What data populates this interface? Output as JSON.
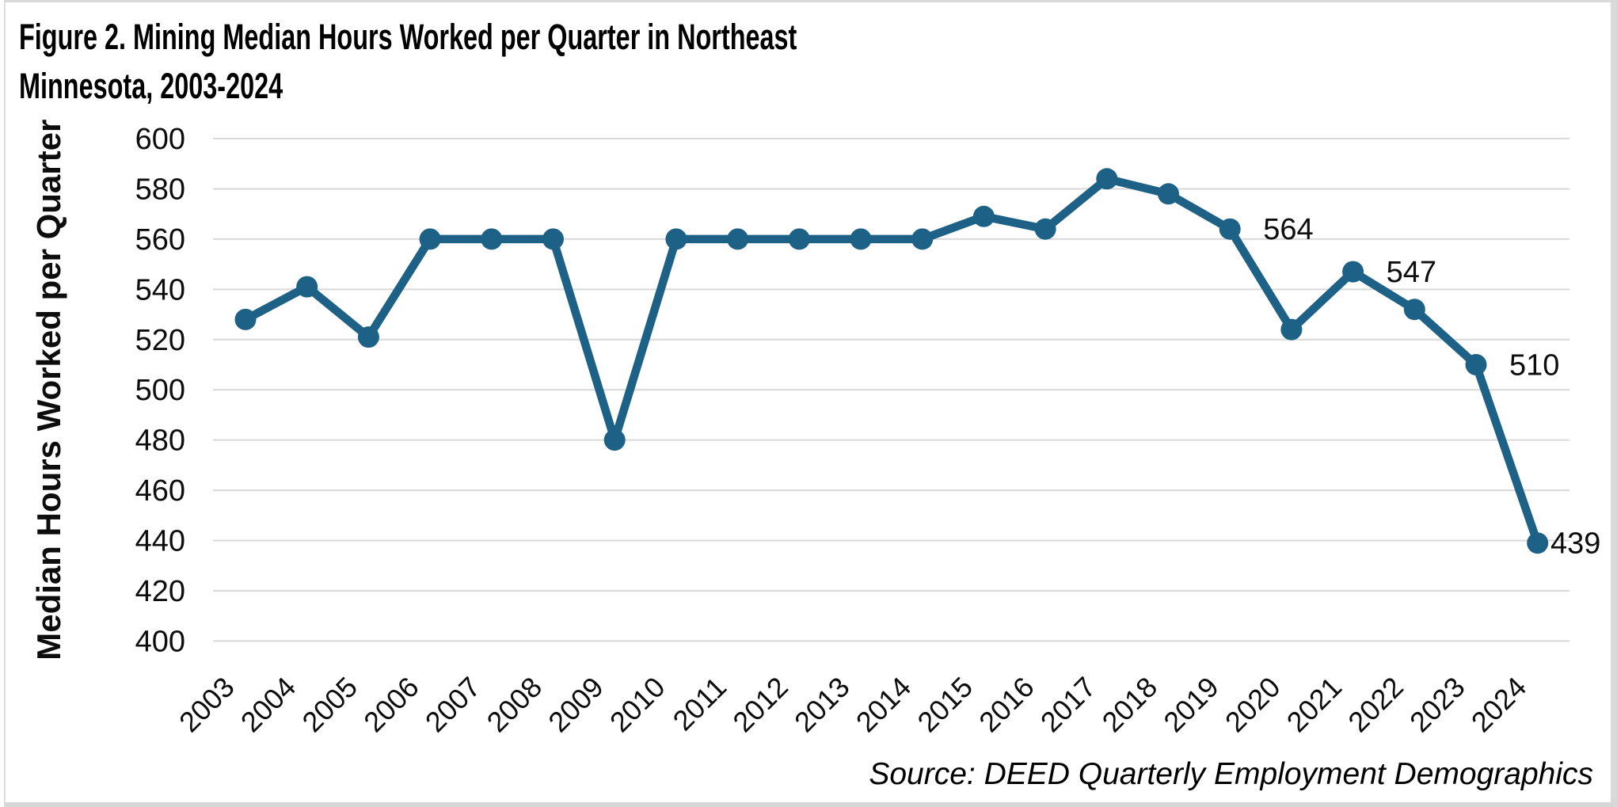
{
  "figure": {
    "title_line1": "Figure 2. Mining Median Hours Worked per Quarter in Northeast",
    "title_line2": "Minnesota, 2003-2024",
    "source": "Source: DEED Quarterly Employment Demographics"
  },
  "chart_data": {
    "type": "line",
    "title": "Figure 2. Mining Median Hours Worked per Quarter in Northeast Minnesota, 2003-2024",
    "xlabel": "",
    "ylabel": "Median Hours Worked per Quarter",
    "source": "Source: DEED Quarterly Employment Demographics",
    "categories": [
      "2003",
      "2004",
      "2005",
      "2006",
      "2007",
      "2008",
      "2009",
      "2010",
      "2011",
      "2012",
      "2013",
      "2014",
      "2015",
      "2016",
      "2017",
      "2018",
      "2019",
      "2020",
      "2021",
      "2022",
      "2023",
      "2024"
    ],
    "series": [
      {
        "name": "Median Hours Worked per Quarter",
        "values": [
          528,
          541,
          521,
          560,
          560,
          560,
          480,
          560,
          560,
          560,
          560,
          560,
          569,
          564,
          584,
          578,
          564,
          524,
          547,
          532,
          510,
          439
        ]
      }
    ],
    "data_labels": [
      {
        "category": "2019",
        "text": "564"
      },
      {
        "category": "2021",
        "text": "547"
      },
      {
        "category": "2023",
        "text": "510"
      },
      {
        "category": "2024",
        "text": "439"
      }
    ],
    "ylim": [
      400,
      600
    ],
    "ytick_step": 20,
    "grid": "horizontal-only",
    "legend": "none",
    "line_color": "#1d6187",
    "gridline_color": "#d9d9d9",
    "text_color": "#0d0d0d"
  }
}
